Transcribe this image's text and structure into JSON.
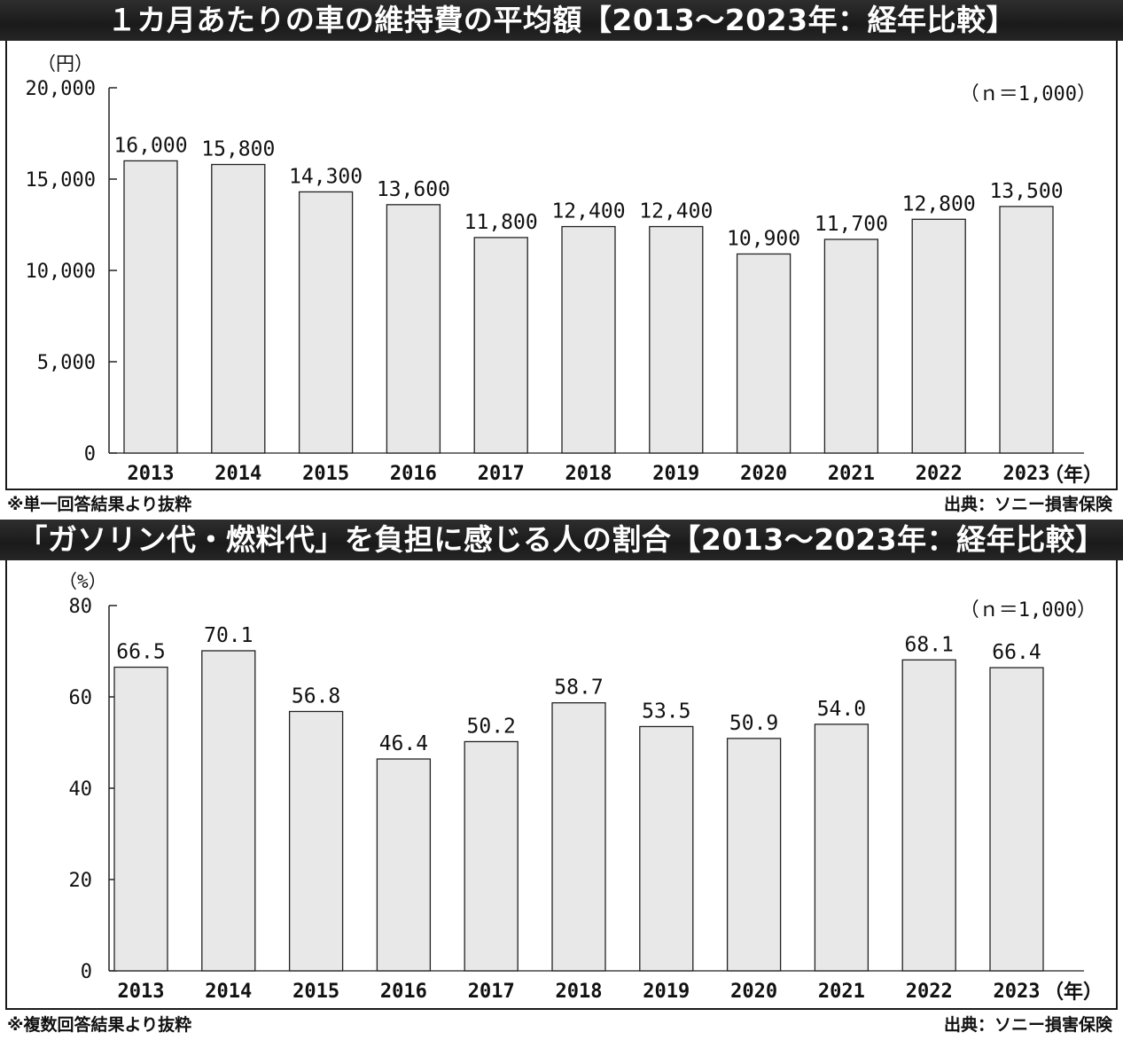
{
  "charts": [
    {
      "title": "１カ月あたりの車の維持費の平均額【2013～2023年：経年比較】",
      "unit": "（円）",
      "n_label": "（ｎ＝1,000）",
      "x_unit": "（年）",
      "footnote": "※単一回答結果より抜粋",
      "source": "出典：ソニー損害保険"
    },
    {
      "title": "「ガソリン代・燃料代」を負担に感じる人の割合【2013～2023年：経年比較】",
      "unit": "（%）",
      "n_label": "（ｎ＝1,000）",
      "x_unit": "（年）",
      "footnote": "※複数回答結果より抜粋",
      "source": "出典：ソニー損害保険"
    }
  ],
  "colors": {
    "bar_fill": "#e8e8e8",
    "bar_stroke": "#222222",
    "title_bg": "#222222"
  },
  "chart_data": [
    {
      "type": "bar",
      "title": "１カ月あたりの車の維持費の平均額【2013～2023年：経年比較】",
      "categories": [
        "2013",
        "2014",
        "2015",
        "2016",
        "2017",
        "2018",
        "2019",
        "2020",
        "2021",
        "2022",
        "2023"
      ],
      "values": [
        16000,
        15800,
        14300,
        13600,
        11800,
        12400,
        12400,
        10900,
        11700,
        12800,
        13500
      ],
      "value_labels": [
        "16,000",
        "15,800",
        "14,300",
        "13,600",
        "11,800",
        "12,400",
        "12,400",
        "10,900",
        "11,700",
        "12,800",
        "13,500"
      ],
      "ylabel": "（円）",
      "ylim": [
        0,
        20000
      ],
      "yticks": [
        0,
        5000,
        10000,
        15000,
        20000
      ],
      "ytick_labels": [
        "0",
        "5,000",
        "10,000",
        "15,000",
        "20,000"
      ],
      "grid": false
    },
    {
      "type": "bar",
      "title": "「ガソリン代・燃料代」を負担に感じる人の割合【2013～2023年：経年比較】",
      "categories": [
        "2013",
        "2014",
        "2015",
        "2016",
        "2017",
        "2018",
        "2019",
        "2020",
        "2021",
        "2022",
        "2023"
      ],
      "values": [
        66.5,
        70.1,
        56.8,
        46.4,
        50.2,
        58.7,
        53.5,
        50.9,
        54.0,
        68.1,
        66.4
      ],
      "value_labels": [
        "66.5",
        "70.1",
        "56.8",
        "46.4",
        "50.2",
        "58.7",
        "53.5",
        "50.9",
        "54.0",
        "68.1",
        "66.4"
      ],
      "ylabel": "（%）",
      "ylim": [
        0,
        80
      ],
      "yticks": [
        0,
        20,
        40,
        60,
        80
      ],
      "ytick_labels": [
        "0",
        "20",
        "40",
        "60",
        "80"
      ],
      "grid": false
    }
  ]
}
